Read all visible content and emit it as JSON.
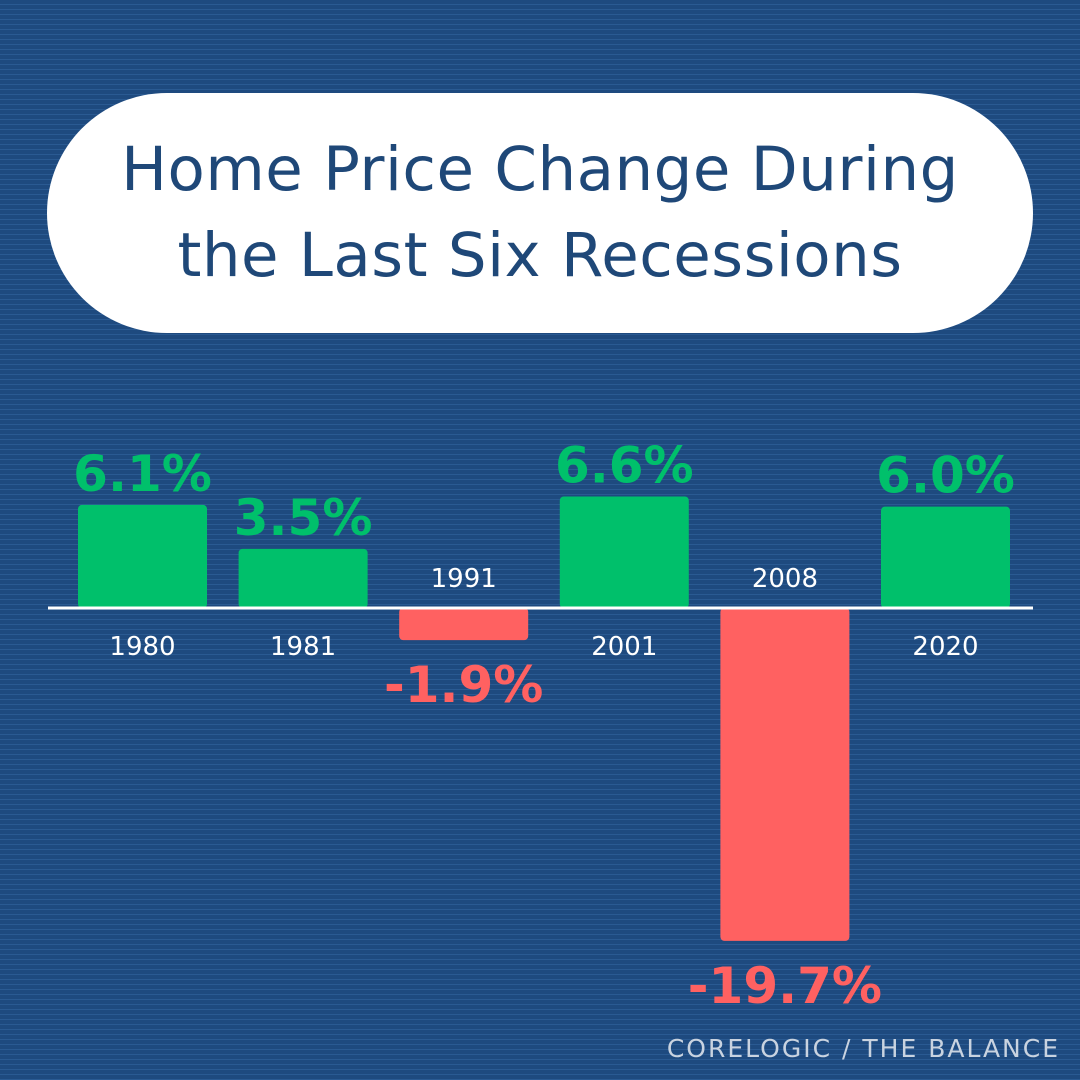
{
  "title_lines": [
    "Home Price Change During",
    "the Last Six Recessions"
  ],
  "source": "CORELOGIC / THE BALANCE",
  "colors": {
    "positive": "#00c06b",
    "negative": "#ff6161",
    "baseline": "#ffffff"
  },
  "chart_data": {
    "type": "bar",
    "title": "Home Price Change During the Last Six Recessions",
    "xlabel": "",
    "ylabel": "",
    "categories": [
      "1980",
      "1981",
      "1991",
      "2001",
      "2008",
      "2020"
    ],
    "values": [
      6.1,
      3.5,
      -1.9,
      6.6,
      -19.7,
      6.0
    ],
    "value_labels": [
      "6.1%",
      "3.5%",
      "-1.9%",
      "6.6%",
      "-19.7%",
      "6.0%"
    ],
    "ylim": [
      -19.7,
      6.6
    ],
    "grid": false,
    "legend": "none"
  }
}
